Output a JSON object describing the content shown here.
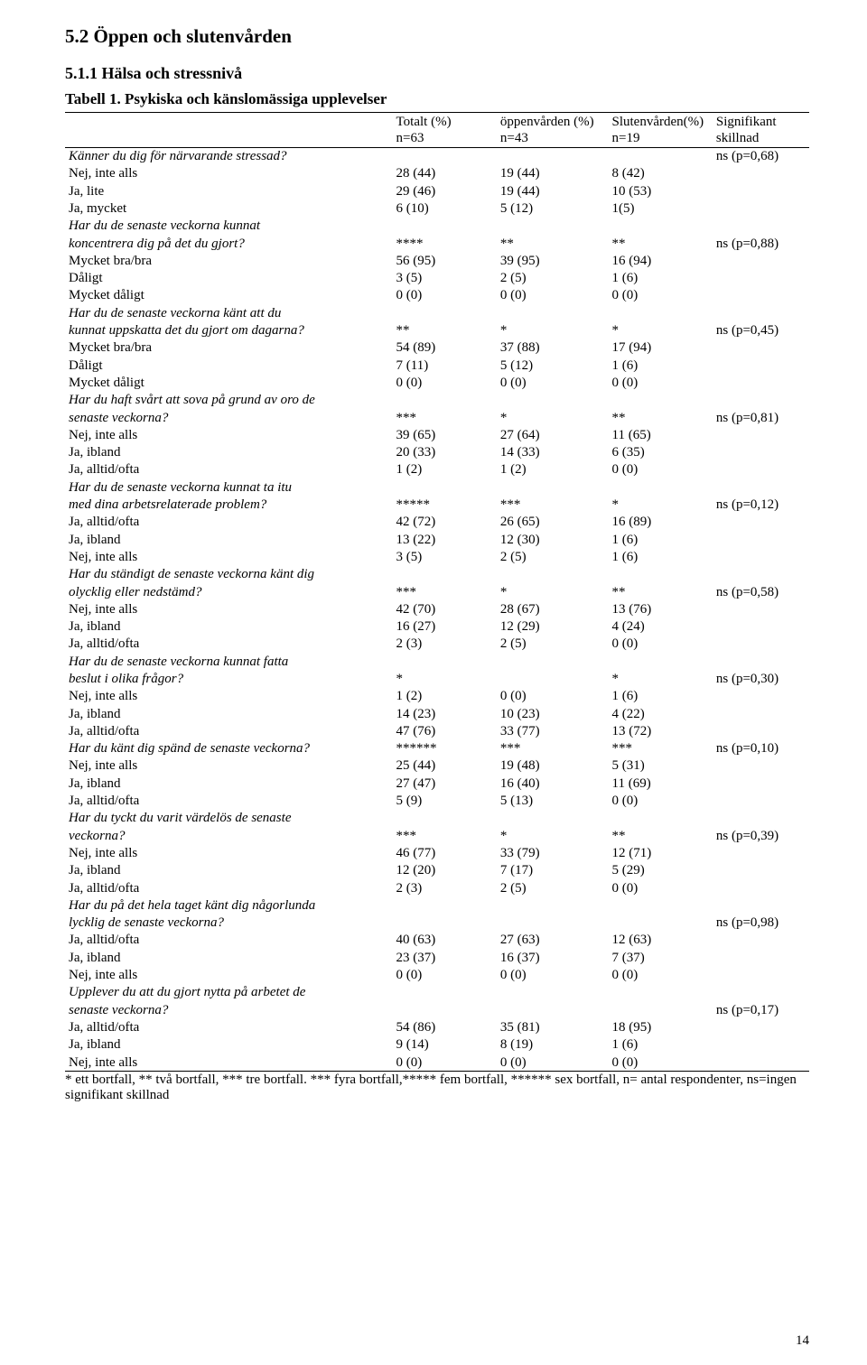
{
  "headings": {
    "h2": "5.2 Öppen och slutenvården",
    "h3": "5.1.1 Hälsa och stressnivå",
    "caption": "Tabell 1. Psykiska och känslomässiga upplevelser"
  },
  "columns": {
    "tot1": "Totalt (%)",
    "tot2": "n=63",
    "opp1": "öppenvården (%)",
    "opp2": "n=43",
    "slut1": "Slutenvården(%)",
    "slut2": "n=19",
    "sig1": "Signifikant",
    "sig2": "skillnad"
  },
  "pagenum": "14",
  "footnote": "* ett bortfall, ** två bortfall, *** tre bortfall. *** fyra bortfall,***** fem bortfall, ****** sex bortfall, n= antal respondenter, ns=ingen signifikant skillnad",
  "rows": [
    {
      "l": "Känner du dig för närvarande stressad?",
      "a": "",
      "b": "",
      "c": "",
      "s": "ns (p=0,68)",
      "it": true,
      "bt": true
    },
    {
      "l": "Nej, inte alls",
      "a": "28 (44)",
      "b": "19 (44)",
      "c": "8 (42)",
      "s": ""
    },
    {
      "l": "Ja, lite",
      "a": "29 (46)",
      "b": "19 (44)",
      "c": "10 (53)",
      "s": ""
    },
    {
      "l": "Ja, mycket",
      "a": "6 (10)",
      "b": "5 (12)",
      "c": "1(5)",
      "s": ""
    },
    {
      "l": "Har du de senaste veckorna kunnat",
      "a": "",
      "b": "",
      "c": "",
      "s": "",
      "it": true
    },
    {
      "l": "koncentrera dig på det du gjort?",
      "a": "****",
      "b": "**",
      "c": "**",
      "s": "ns (p=0,88)",
      "it": true
    },
    {
      "l": "Mycket bra/bra",
      "a": "56 (95)",
      "b": "39 (95)",
      "c": "16 (94)",
      "s": ""
    },
    {
      "l": "Dåligt",
      "a": "3 (5)",
      "b": "2 (5)",
      "c": "1 (6)",
      "s": ""
    },
    {
      "l": "Mycket dåligt",
      "a": "0 (0)",
      "b": "0 (0)",
      "c": "0 (0)",
      "s": ""
    },
    {
      "l": "Har du de senaste veckorna känt att du",
      "a": "",
      "b": "",
      "c": "",
      "s": "",
      "it": true
    },
    {
      "l": "kunnat uppskatta det du gjort om dagarna?",
      "a": "**",
      "b": "*",
      "c": "*",
      "s": "ns (p=0,45)",
      "it": true
    },
    {
      "l": "Mycket bra/bra",
      "a": "54 (89)",
      "b": "37 (88)",
      "c": "17 (94)",
      "s": ""
    },
    {
      "l": "Dåligt",
      "a": "7 (11)",
      "b": "5 (12)",
      "c": "1 (6)",
      "s": ""
    },
    {
      "l": "Mycket dåligt",
      "a": "0 (0)",
      "b": "0 (0)",
      "c": "0 (0)",
      "s": ""
    },
    {
      "l": "Har du haft svårt att sova på grund av oro de",
      "a": "",
      "b": "",
      "c": "",
      "s": "",
      "it": true
    },
    {
      "l": "senaste veckorna?",
      "a": "***",
      "b": "*",
      "c": "**",
      "s": "ns (p=0,81)",
      "it": true
    },
    {
      "l": "Nej, inte alls",
      "a": "39 (65)",
      "b": "27 (64)",
      "c": "11 (65)",
      "s": ""
    },
    {
      "l": "Ja, ibland",
      "a": "20 (33)",
      "b": "14 (33)",
      "c": "6 (35)",
      "s": ""
    },
    {
      "l": "Ja, alltid/ofta",
      "a": "1 (2)",
      "b": "1 (2)",
      "c": "0 (0)",
      "s": ""
    },
    {
      "l": "Har du de senaste veckorna kunnat ta itu",
      "a": "",
      "b": "",
      "c": "",
      "s": "",
      "it": true
    },
    {
      "l": "med dina arbetsrelaterade problem?",
      "a": "*****",
      "b": "***",
      "c": "*",
      "s": "ns (p=0,12)",
      "it": true
    },
    {
      "l": "Ja, alltid/ofta",
      "a": "42 (72)",
      "b": "26 (65)",
      "c": "16 (89)",
      "s": ""
    },
    {
      "l": "Ja, ibland",
      "a": "13 (22)",
      "b": "12 (30)",
      "c": "1 (6)",
      "s": ""
    },
    {
      "l": "Nej, inte alls",
      "a": "3 (5)",
      "b": "2 (5)",
      "c": "1 (6)",
      "s": ""
    },
    {
      "l": "Har du ständigt de senaste veckorna känt dig",
      "a": "",
      "b": "",
      "c": "",
      "s": "",
      "it": true
    },
    {
      "l": "olycklig eller nedstämd?",
      "a": "***",
      "b": "*",
      "c": "**",
      "s": "ns (p=0,58)",
      "it": true
    },
    {
      "l": "Nej, inte alls",
      "a": "42 (70)",
      "b": "28 (67)",
      "c": "13 (76)",
      "s": ""
    },
    {
      "l": "Ja, ibland",
      "a": "16 (27)",
      "b": " 12 (29)",
      "c": "4 (24)",
      "s": ""
    },
    {
      "l": "Ja, alltid/ofta",
      "a": "2 (3)",
      "b": "2 (5)",
      "c": "0 (0)",
      "s": ""
    },
    {
      "l": "Har du de senaste veckorna kunnat fatta",
      "a": "",
      "b": "",
      "c": "",
      "s": "",
      "it": true
    },
    {
      "l": "beslut i olika frågor?",
      "a": "*",
      "b": "",
      "c": "*",
      "s": "ns (p=0,30)",
      "it": true
    },
    {
      "l": "Nej, inte alls",
      "a": "1 (2)",
      "b": "0 (0)",
      "c": "1 (6)",
      "s": ""
    },
    {
      "l": "Ja, ibland",
      "a": "14 (23)",
      "b": "10 (23)",
      "c": "4 (22)",
      "s": ""
    },
    {
      "l": "Ja, alltid/ofta",
      "a": "47 (76)",
      "b": "33 (77)",
      "c": "13 (72)",
      "s": ""
    },
    {
      "l": "Har du känt dig spänd de senaste veckorna?",
      "a": "******",
      "b": "***",
      "c": "***",
      "s": "ns (p=0,10)",
      "it": true
    },
    {
      "l": "Nej, inte alls",
      "a": "25 (44)",
      "b": "19 (48)",
      "c": "5 (31)",
      "s": ""
    },
    {
      "l": "Ja, ibland",
      "a": "27 (47)",
      "b": "16 (40)",
      "c": "11 (69)",
      "s": ""
    },
    {
      "l": "Ja, alltid/ofta",
      "a": "5 (9)",
      "b": "5 (13)",
      "c": "0 (0)",
      "s": ""
    },
    {
      "l": "Har du tyckt du varit värdelös de senaste",
      "a": "",
      "b": "",
      "c": "",
      "s": "",
      "it": true
    },
    {
      "l": "veckorna?",
      "a": "***",
      "b": "*",
      "c": "**",
      "s": "ns (p=0,39)",
      "it": true
    },
    {
      "l": "Nej, inte alls",
      "a": "46 (77)",
      "b": "33 (79)",
      "c": "12 (71)",
      "s": ""
    },
    {
      "l": "Ja, ibland",
      "a": "12 (20)",
      "b": "7 (17)",
      "c": "5 (29)",
      "s": ""
    },
    {
      "l": "Ja, alltid/ofta",
      "a": "2 (3)",
      "b": "2 (5)",
      "c": "0 (0)",
      "s": ""
    },
    {
      "l": "Har du på det hela taget känt dig någorlunda",
      "a": "",
      "b": "",
      "c": "",
      "s": "",
      "it": true
    },
    {
      "l": "lycklig de senaste veckorna?",
      "a": "",
      "b": "",
      "c": "",
      "s": "ns (p=0,98)",
      "it": true
    },
    {
      "l": "Ja, alltid/ofta",
      "a": "40 (63)",
      "b": "27 (63)",
      "c": "12 (63)",
      "s": ""
    },
    {
      "l": "Ja, ibland",
      "a": "23 (37)",
      "b": "16 (37)",
      "c": "7 (37)",
      "s": ""
    },
    {
      "l": "Nej, inte alls",
      "a": "0 (0)",
      "b": "0 (0)",
      "c": "0 (0)",
      "s": ""
    },
    {
      "l": "Upplever du att du gjort nytta på arbetet de",
      "a": "",
      "b": "",
      "c": "",
      "s": "",
      "it": true
    },
    {
      "l": "senaste veckorna?",
      "a": "",
      "b": "",
      "c": "",
      "s": "ns (p=0,17)",
      "it": true
    },
    {
      "l": "Ja, alltid/ofta",
      "a": "54 (86)",
      "b": "35 (81)",
      "c": "18 (95)",
      "s": ""
    },
    {
      "l": "Ja, ibland",
      "a": "9 (14)",
      "b": "8 (19)",
      "c": "1 (6)",
      "s": ""
    },
    {
      "l": "Nej, inte alls",
      "a": "0 (0)",
      "b": "0 (0)",
      "c": "0 (0)",
      "s": "",
      "bb": true
    }
  ]
}
